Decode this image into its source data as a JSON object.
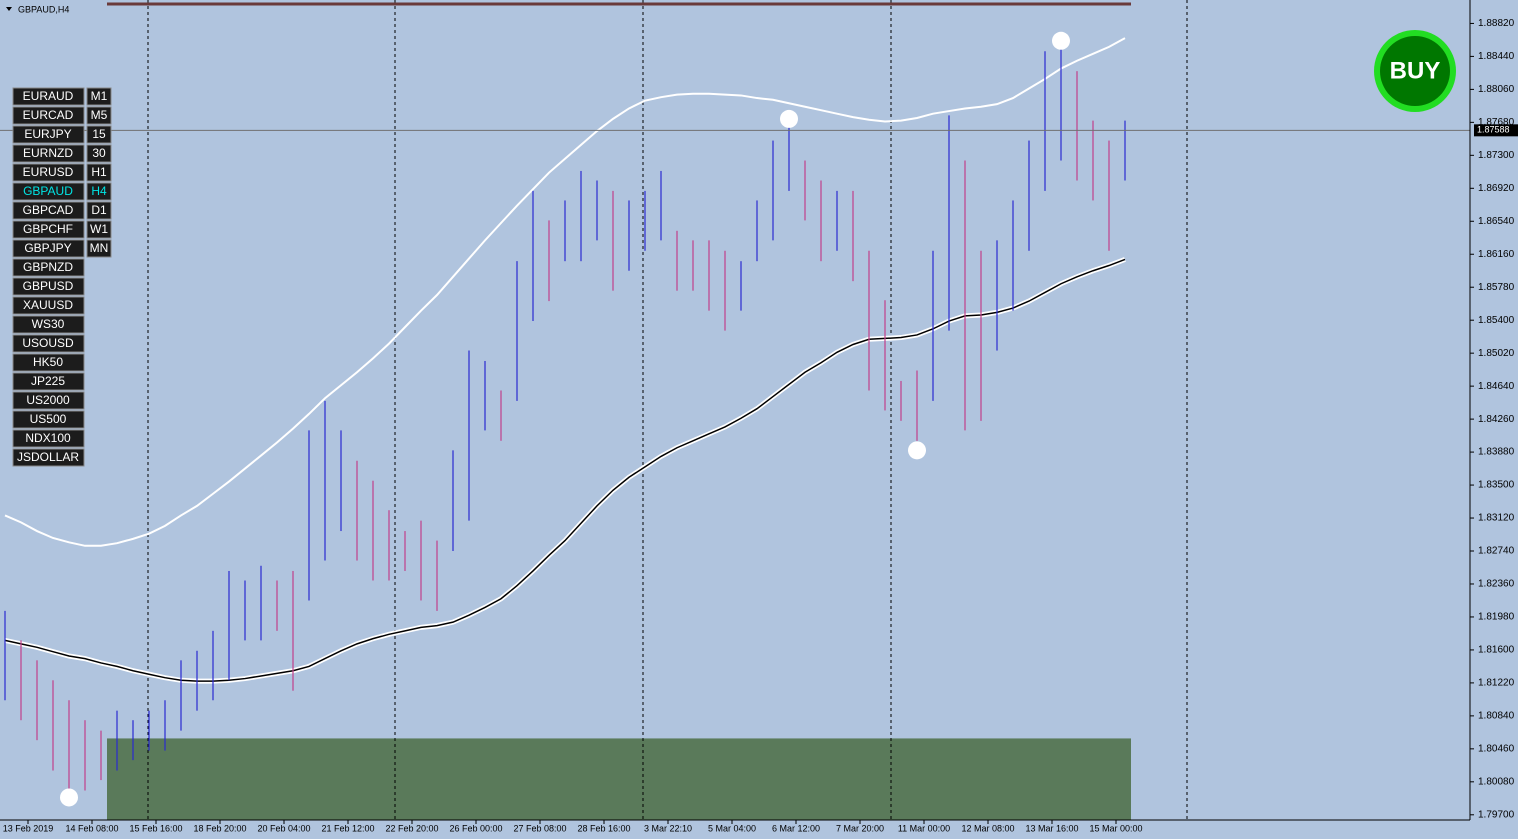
{
  "title": "GBPAUD,H4",
  "symbols": [
    "EURAUD",
    "EURCAD",
    "EURJPY",
    "EURNZD",
    "EURUSD",
    "GBPAUD",
    "GBPCAD",
    "GBPCHF",
    "GBPJPY",
    "GBPNZD",
    "GBPUSD",
    "XAUUSD",
    "WS30",
    "USOUSD",
    "HK50",
    "JP225",
    "US2000",
    "US500",
    "NDX100",
    "JSDOLLAR"
  ],
  "timeframes": [
    "M1",
    "M5",
    "15",
    "30",
    "H1",
    "H4",
    "D1",
    "W1",
    "MN"
  ],
  "selected": 5,
  "signal_button": "BUY",
  "chart_data": {
    "type": "ohlc",
    "up_color": "#2a2ad0",
    "down_color": "#c0408a",
    "high": [
      1.8205,
      1.8171,
      1.8148,
      1.8125,
      1.8102,
      1.8079,
      1.8067,
      1.809,
      1.8079,
      1.809,
      1.8102,
      1.8148,
      1.8159,
      1.8182,
      1.8251,
      1.824,
      1.8257,
      1.824,
      1.8251,
      1.8413,
      1.8447,
      1.8413,
      1.8378,
      1.8355,
      1.8321,
      1.8297,
      1.8309,
      1.8286,
      1.839,
      1.8505,
      1.8493,
      1.8459,
      1.8608,
      1.8689,
      1.8655,
      1.8678,
      1.8712,
      1.8701,
      1.8689,
      1.8678,
      1.8689,
      1.8712,
      1.8643,
      1.8632,
      1.8632,
      1.862,
      1.8608,
      1.8678,
      1.8747,
      1.877,
      1.8724,
      1.8701,
      1.8689,
      1.8689,
      1.862,
      1.8563,
      1.847,
      1.8482,
      1.862,
      1.8776,
      1.8724,
      1.862,
      1.8632,
      1.8678,
      1.8747,
      1.885,
      1.8862,
      1.8827,
      1.877,
      1.8747,
      1.877
    ],
    "low": [
      1.8102,
      1.8079,
      1.8056,
      1.8021,
      1.7986,
      1.7998,
      1.801,
      1.8021,
      1.8033,
      1.8044,
      1.8044,
      1.8067,
      1.809,
      1.8102,
      1.8125,
      1.8171,
      1.8171,
      1.8182,
      1.8113,
      1.8217,
      1.8263,
      1.8297,
      1.8263,
      1.824,
      1.824,
      1.8251,
      1.8217,
      1.8205,
      1.8274,
      1.8309,
      1.8413,
      1.8401,
      1.8447,
      1.8539,
      1.8562,
      1.8608,
      1.8608,
      1.8632,
      1.8574,
      1.8597,
      1.862,
      1.8632,
      1.8574,
      1.8574,
      1.8551,
      1.8528,
      1.8551,
      1.8608,
      1.8632,
      1.8689,
      1.8655,
      1.8608,
      1.862,
      1.8585,
      1.8459,
      1.8436,
      1.8424,
      1.8401,
      1.8447,
      1.8528,
      1.8413,
      1.8424,
      1.8505,
      1.8551,
      1.862,
      1.8689,
      1.8724,
      1.8701,
      1.8678,
      1.862,
      1.8701
    ],
    "upper_band": {
      "color": "#ffffff",
      "values": [
        1.8315,
        1.8307,
        1.8297,
        1.8289,
        1.8284,
        1.828,
        1.828,
        1.8283,
        1.8288,
        1.8294,
        1.8303,
        1.8315,
        1.8326,
        1.834,
        1.8354,
        1.8369,
        1.8384,
        1.8399,
        1.8415,
        1.8432,
        1.845,
        1.8465,
        1.848,
        1.8496,
        1.8513,
        1.8532,
        1.8551,
        1.8569,
        1.859,
        1.8611,
        1.8632,
        1.8652,
        1.8672,
        1.8691,
        1.871,
        1.8726,
        1.8742,
        1.8758,
        1.8772,
        1.8784,
        1.8793,
        1.8797,
        1.88,
        1.8801,
        1.8801,
        1.88,
        1.8799,
        1.8796,
        1.8794,
        1.879,
        1.8786,
        1.8782,
        1.8778,
        1.8774,
        1.8771,
        1.8769,
        1.877,
        1.8773,
        1.8778,
        1.8781,
        1.8784,
        1.8786,
        1.8789,
        1.8796,
        1.8807,
        1.8818,
        1.883,
        1.8839,
        1.8847,
        1.8855,
        1.8865
      ]
    },
    "moving_average": {
      "color": "#000000",
      "values": [
        1.8171,
        1.8167,
        1.8163,
        1.8158,
        1.8153,
        1.815,
        1.8145,
        1.8141,
        1.8136,
        1.8132,
        1.8128,
        1.8125,
        1.8124,
        1.8124,
        1.8125,
        1.8127,
        1.813,
        1.8133,
        1.8136,
        1.8141,
        1.815,
        1.8159,
        1.8167,
        1.8173,
        1.8178,
        1.8182,
        1.8186,
        1.8188,
        1.8192,
        1.82,
        1.8209,
        1.8219,
        1.8234,
        1.8251,
        1.8269,
        1.8286,
        1.8306,
        1.8326,
        1.8344,
        1.8359,
        1.8371,
        1.8383,
        1.8393,
        1.8401,
        1.8409,
        1.8417,
        1.8427,
        1.8438,
        1.8452,
        1.8466,
        1.848,
        1.8491,
        1.8503,
        1.8512,
        1.8518,
        1.8519,
        1.852,
        1.8523,
        1.853,
        1.8539,
        1.8545,
        1.8546,
        1.8549,
        1.8554,
        1.8562,
        1.8572,
        1.8582,
        1.859,
        1.8597,
        1.8603,
        1.861
      ]
    },
    "signals": [
      {
        "bar": 4,
        "price": 1.799
      },
      {
        "bar": 49,
        "price": 1.8772
      },
      {
        "bar": 57,
        "price": 1.839
      },
      {
        "bar": 66,
        "price": 1.8862
      }
    ],
    "zone_top": 1.8058,
    "zone_color": "#5a7a5a",
    "current_price": 1.87588,
    "ylim": [
      1.7964,
      1.8909
    ],
    "yticks": [
      {
        "value": 1.8882,
        "label": "1.88820"
      },
      {
        "value": 1.8844,
        "label": "1.88440"
      },
      {
        "value": 1.8806,
        "label": "1.88060"
      },
      {
        "value": 1.8768,
        "label": "1.87680"
      },
      {
        "value": 1.873,
        "label": "1.87300"
      },
      {
        "value": 1.8692,
        "label": "1.86920"
      },
      {
        "value": 1.8654,
        "label": "1.86540"
      },
      {
        "value": 1.8616,
        "label": "1.86160"
      },
      {
        "value": 1.8578,
        "label": "1.85780"
      },
      {
        "value": 1.854,
        "label": "1.85400"
      },
      {
        "value": 1.8502,
        "label": "1.85020"
      },
      {
        "value": 1.8464,
        "label": "1.84640"
      },
      {
        "value": 1.8426,
        "label": "1.84260"
      },
      {
        "value": 1.8388,
        "label": "1.83880"
      },
      {
        "value": 1.835,
        "label": "1.83500"
      },
      {
        "value": 1.8312,
        "label": "1.83120"
      },
      {
        "value": 1.8274,
        "label": "1.82740"
      },
      {
        "value": 1.8236,
        "label": "1.82360"
      },
      {
        "value": 1.8198,
        "label": "1.81980"
      },
      {
        "value": 1.816,
        "label": "1.81600"
      },
      {
        "value": 1.8122,
        "label": "1.81220"
      },
      {
        "value": 1.8084,
        "label": "1.80840"
      },
      {
        "value": 1.8046,
        "label": "1.80460"
      },
      {
        "value": 1.8008,
        "label": "1.80080"
      },
      {
        "value": 1.797,
        "label": "1.79700"
      }
    ],
    "time_labels": [
      "13 Feb 2019",
      "14 Feb 08:00",
      "15 Feb 16:00",
      "18 Feb 20:00",
      "20 Feb 04:00",
      "21 Feb 12:00",
      "22 Feb 20:00",
      "26 Feb 00:00",
      "27 Feb 08:00",
      "28 Feb 16:00",
      "3 Mar 22:10",
      "5 Mar 04:00",
      "6 Mar 12:00",
      "7 Mar 20:00",
      "11 Mar 00:00",
      "12 Mar 08:00",
      "13 Mar 16:00",
      "15 Mar 00:00"
    ]
  }
}
